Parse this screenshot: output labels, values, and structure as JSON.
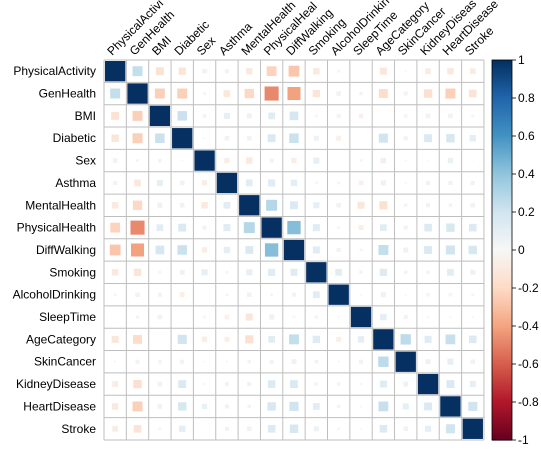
{
  "chart_data": {
    "type": "heatmap",
    "variables": [
      "PhysicalActivity",
      "GenHealth",
      "BMI",
      "Diabetic",
      "Sex",
      "Asthma",
      "MentalHealth",
      "PhysicalHealth",
      "DiffWalking",
      "Smoking",
      "AlcoholDrinking",
      "SleepTime",
      "AgeCategory",
      "SkinCancer",
      "KidneyDisease",
      "HeartDisease",
      "Stroke"
    ],
    "column_labels": [
      "PhysicalActivi",
      "GenHealth",
      "BMI",
      "Diabetic",
      "Sex",
      "Asthma",
      "MentalHealth",
      "PhysicalHeal",
      "DiffWalking",
      "Smoking",
      "AlcoholDrinkin",
      "SleepTime",
      "AgeCategory",
      "SkinCancer",
      "KidneyDiseas",
      "HeartDisease",
      "Stroke"
    ],
    "matrix": [
      [
        1,
        0.24,
        -0.15,
        -0.13,
        0.05,
        -0.04,
        -0.1,
        -0.23,
        -0.28,
        -0.1,
        0.02,
        0,
        -0.12,
        -0.01,
        -0.08,
        -0.1,
        -0.08
      ],
      [
        0.24,
        1,
        -0.24,
        -0.24,
        0.02,
        -0.11,
        -0.21,
        -0.48,
        -0.41,
        -0.13,
        0.05,
        0.03,
        -0.19,
        -0.04,
        -0.17,
        -0.24,
        -0.14
      ],
      [
        -0.15,
        -0.24,
        1,
        0.22,
        0.03,
        0.09,
        0.06,
        0.11,
        0.18,
        0.02,
        -0.04,
        -0.05,
        0,
        -0.03,
        0.05,
        0.05,
        0.02
      ],
      [
        -0.13,
        -0.24,
        0.22,
        1,
        0.01,
        0.05,
        0.05,
        0.15,
        0.22,
        0.06,
        -0.06,
        0,
        0.2,
        0.04,
        0.15,
        0.17,
        0.1
      ],
      [
        0.05,
        0.02,
        0.03,
        0.01,
        1,
        -0.07,
        -0.1,
        -0.04,
        -0.07,
        0.09,
        0,
        -0.02,
        -0.07,
        0.01,
        -0.01,
        0.07,
        -0.003
      ],
      [
        -0.04,
        -0.11,
        0.09,
        0.05,
        -0.07,
        1,
        0.11,
        0.12,
        0.1,
        0.02,
        -0.02,
        -0.05,
        -0.06,
        -0.01,
        0.04,
        0.04,
        0.04
      ],
      [
        -0.1,
        -0.21,
        0.06,
        0.05,
        -0.1,
        0.11,
        1,
        0.29,
        0.15,
        0.09,
        0.05,
        -0.12,
        -0.16,
        -0.03,
        0.04,
        0.03,
        0.05
      ],
      [
        -0.23,
        -0.48,
        0.11,
        0.15,
        -0.04,
        0.12,
        0.29,
        1,
        0.43,
        0.12,
        -0.02,
        -0.06,
        0.11,
        0.04,
        0.14,
        0.17,
        0.14
      ],
      [
        -0.28,
        -0.41,
        0.18,
        0.22,
        -0.07,
        0.1,
        0.15,
        0.43,
        1,
        0.12,
        -0.04,
        -0.02,
        0.24,
        0.06,
        0.15,
        0.2,
        0.17
      ],
      [
        -0.1,
        -0.13,
        0.02,
        0.06,
        0.09,
        0.02,
        0.09,
        0.12,
        0.12,
        1,
        0.11,
        -0.03,
        0.13,
        0.03,
        0.03,
        0.11,
        0.06
      ],
      [
        0.02,
        0.05,
        -0.04,
        -0.06,
        0,
        -0.02,
        0.05,
        -0.02,
        -0.04,
        0.11,
        1,
        -0.01,
        -0.06,
        -0.01,
        -0.03,
        -0.03,
        -0.02
      ],
      [
        0,
        0.03,
        -0.05,
        0,
        -0.02,
        -0.05,
        -0.12,
        -0.06,
        -0.02,
        -0.03,
        -0.01,
        1,
        0.1,
        0.04,
        0.01,
        0.01,
        0.01
      ],
      [
        -0.12,
        -0.19,
        0,
        0.2,
        -0.07,
        -0.06,
        -0.16,
        0.11,
        0.24,
        0.13,
        -0.06,
        0.1,
        1,
        0.26,
        0.12,
        0.23,
        0.14
      ],
      [
        -0.01,
        -0.04,
        -0.03,
        0.04,
        0.01,
        -0.01,
        -0.03,
        0.04,
        0.06,
        0.03,
        -0.01,
        0.04,
        0.26,
        1,
        0.06,
        0.09,
        0.05
      ],
      [
        -0.08,
        -0.17,
        0.05,
        0.15,
        -0.01,
        0.04,
        0.04,
        0.14,
        0.15,
        0.03,
        -0.03,
        0.01,
        0.12,
        0.06,
        1,
        0.15,
        0.09
      ],
      [
        -0.1,
        -0.24,
        0.05,
        0.17,
        0.07,
        0.04,
        0.03,
        0.17,
        0.2,
        0.11,
        -0.03,
        0.01,
        0.23,
        0.09,
        0.15,
        1,
        0.2
      ],
      [
        -0.08,
        -0.14,
        0.02,
        0.1,
        -0.003,
        0.04,
        0.05,
        0.14,
        0.17,
        0.06,
        -0.02,
        0.01,
        0.14,
        0.05,
        0.09,
        0.2,
        1
      ]
    ],
    "colorbar": {
      "ticks": [
        "1",
        "0.8",
        "0.6",
        "0.4",
        "0.2",
        "0",
        "-0.2",
        "-0.4",
        "-0.6",
        "-0.8",
        "-1"
      ],
      "range": [
        -1,
        1
      ]
    },
    "color_positive": "#053061",
    "color_negative": "#67001F",
    "color_neutral": "#F7F7F7"
  }
}
